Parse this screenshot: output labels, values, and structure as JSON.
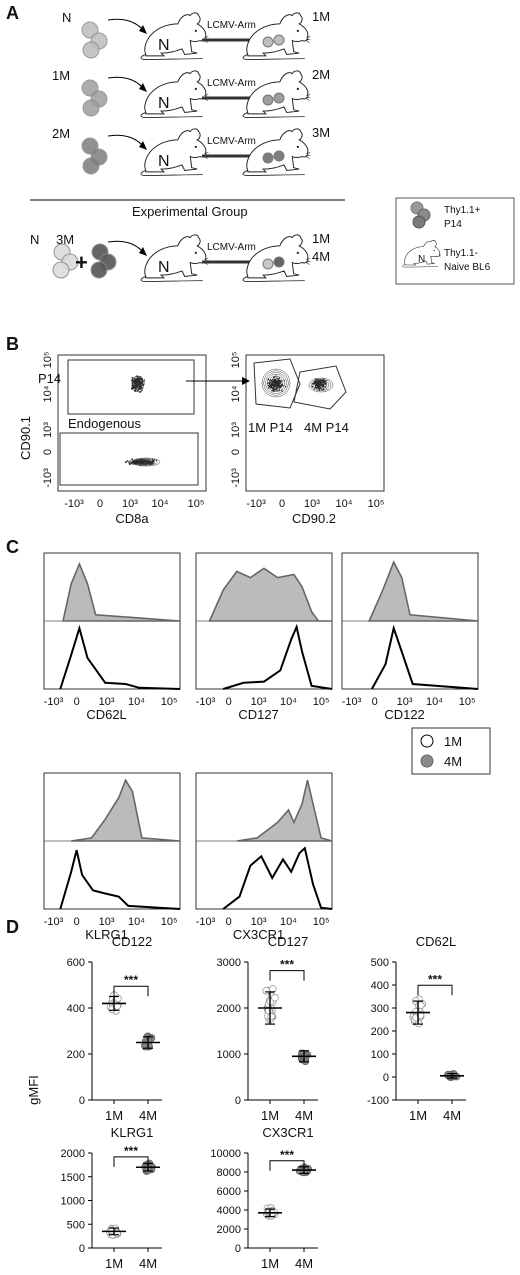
{
  "panelA": {
    "letter": "A",
    "rows": [
      {
        "donor": "N",
        "infection": "LCMV-Arm",
        "result": "1M",
        "result2": "",
        "shade": "#bdbdbd"
      },
      {
        "donor": "1M",
        "infection": "LCMV-Arm",
        "result": "2M",
        "result2": "",
        "shade": "#9e9e9e"
      },
      {
        "donor": "2M",
        "infection": "LCMV-Arm",
        "result": "3M",
        "result2": "",
        "shade": "#7d7d7d"
      },
      {
        "donor": "N",
        "donor2": "3M",
        "infection": "LCMV-Arm",
        "result": "1M",
        "result2": "4M",
        "shade": "#555555"
      }
    ],
    "mouse_label": "N",
    "group_title": "Experimental Group",
    "legend": {
      "cells": "Thy1.1+ P14",
      "cells_line1": "Thy1.1+",
      "cells_line2": "P14",
      "mouse_line1": "Thy1.1-",
      "mouse_line2": "Naive BL6",
      "mouse_label": "N"
    }
  },
  "panelB": {
    "letter": "B",
    "left": {
      "ylabel": "CD90.1",
      "xlabel": "CD8a",
      "gate1": "P14",
      "gate2": "Endogenous"
    },
    "right": {
      "xlabel": "CD90.2",
      "gate1": "1M P14",
      "gate2": "4M P14"
    },
    "xticks": [
      "-10³",
      "0",
      "10³",
      "10⁴",
      "10⁵"
    ],
    "yticks": [
      "10⁵",
      "10⁴",
      "10³",
      "0",
      "-10³"
    ]
  },
  "panelC": {
    "letter": "C",
    "markers": [
      "CD62L",
      "CD127",
      "CD122",
      "KLRG1",
      "CX3CR1"
    ],
    "xticks": [
      "-10³",
      "0",
      "10³",
      "10⁴",
      "10⁵"
    ],
    "legend": [
      {
        "label": "1M",
        "color": "#ffffff"
      },
      {
        "label": "4M",
        "color": "#8a8a8a"
      }
    ]
  },
  "panelD": {
    "letter": "D",
    "ylabel": "gMFI",
    "sig": "***",
    "groups": [
      "1M",
      "4M"
    ],
    "colors": {
      "1M": "#ffffff",
      "4M": "#8a8a8a"
    }
  },
  "chart_data": [
    {
      "type": "scatter",
      "title": "CD122",
      "categories": [
        "1M",
        "4M"
      ],
      "mean": [
        420,
        250
      ],
      "sd": [
        30,
        25
      ],
      "ylim": [
        0,
        600
      ],
      "yticks": [
        0,
        200,
        400,
        600
      ]
    },
    {
      "type": "scatter",
      "title": "CD127",
      "categories": [
        "1M",
        "4M"
      ],
      "mean": [
        2000,
        950
      ],
      "sd": [
        350,
        120
      ],
      "ylim": [
        0,
        3000
      ],
      "yticks": [
        0,
        1000,
        2000,
        3000
      ]
    },
    {
      "type": "scatter",
      "title": "CD62L",
      "categories": [
        "1M",
        "4M"
      ],
      "mean": [
        280,
        5
      ],
      "sd": [
        50,
        10
      ],
      "ylim": [
        -100,
        500
      ],
      "yticks": [
        -100,
        0,
        100,
        200,
        300,
        400,
        500
      ]
    },
    {
      "type": "scatter",
      "title": "KLRG1",
      "categories": [
        "1M",
        "4M"
      ],
      "mean": [
        350,
        1700
      ],
      "sd": [
        70,
        80
      ],
      "ylim": [
        0,
        2000
      ],
      "yticks": [
        0,
        500,
        1000,
        1500,
        2000
      ]
    },
    {
      "type": "scatter",
      "title": "CX3CR1",
      "categories": [
        "1M",
        "4M"
      ],
      "mean": [
        3700,
        8200
      ],
      "sd": [
        400,
        350
      ],
      "ylim": [
        0,
        10000
      ],
      "yticks": [
        0,
        2000,
        4000,
        6000,
        8000,
        10000
      ]
    }
  ]
}
